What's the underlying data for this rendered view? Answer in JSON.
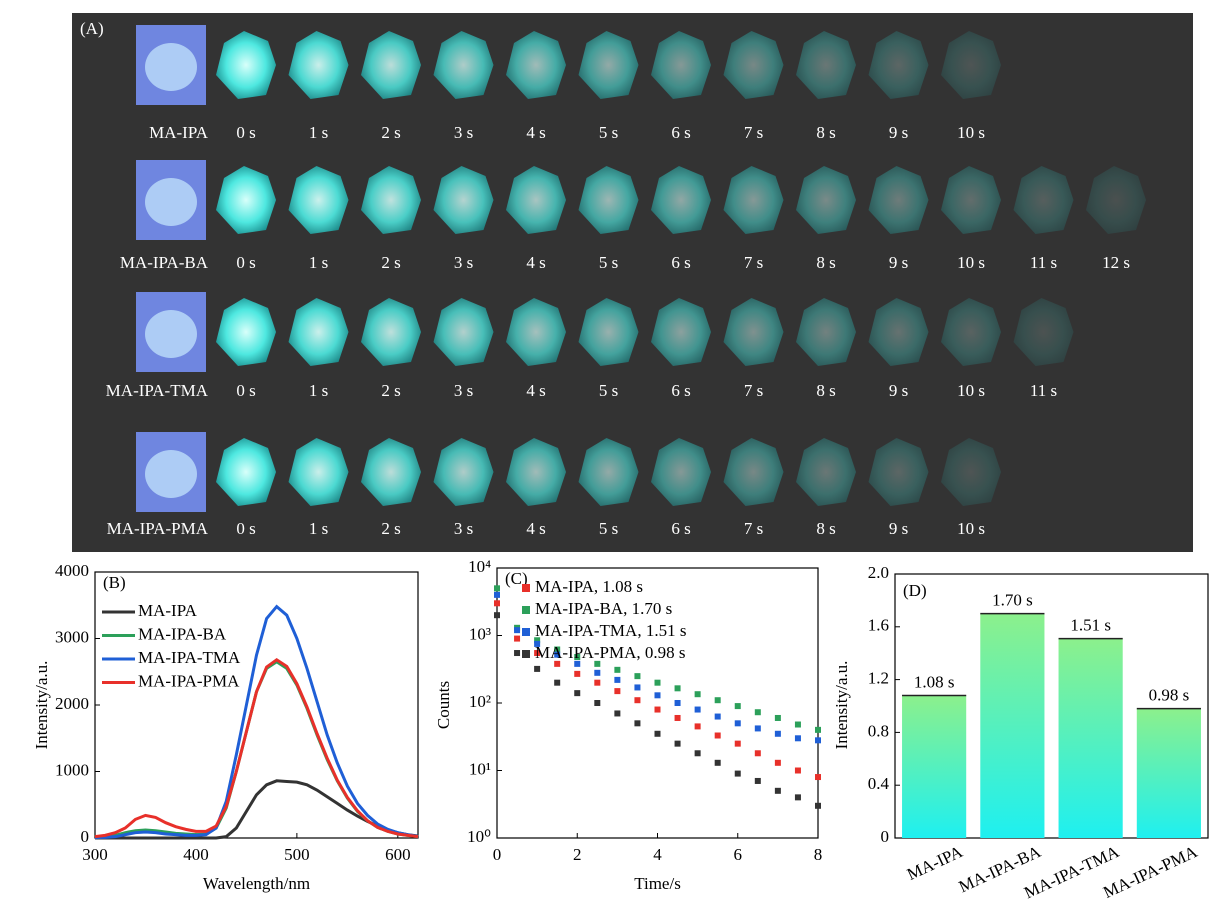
{
  "panel_a": {
    "label": "(A)",
    "rows": [
      {
        "name": "MA-IPA",
        "times": [
          "0 s",
          "1 s",
          "2 s",
          "3 s",
          "4 s",
          "5 s",
          "6 s",
          "7 s",
          "8 s",
          "9 s",
          "10 s"
        ]
      },
      {
        "name": "MA-IPA-BA",
        "times": [
          "0 s",
          "1 s",
          "2 s",
          "3 s",
          "4 s",
          "5 s",
          "6 s",
          "7 s",
          "8 s",
          "9 s",
          "10 s",
          "11 s",
          "12 s"
        ]
      },
      {
        "name": "MA-IPA-TMA",
        "times": [
          "0 s",
          "1 s",
          "2 s",
          "3 s",
          "4 s",
          "5 s",
          "6 s",
          "7 s",
          "8 s",
          "9 s",
          "10 s",
          "11 s"
        ]
      },
      {
        "name": "MA-IPA-PMA",
        "times": [
          "0 s",
          "1 s",
          "2 s",
          "3 s",
          "4 s",
          "5 s",
          "6 s",
          "7 s",
          "8 s",
          "9 s",
          "10 s"
        ]
      }
    ]
  },
  "chart_data": [
    {
      "type": "line",
      "panel_label": "(B)",
      "x_label": "Wavelength/nm",
      "y_label": "Intensity/a.u.",
      "x": [
        300,
        310,
        320,
        330,
        340,
        350,
        360,
        370,
        380,
        390,
        400,
        410,
        420,
        430,
        440,
        450,
        460,
        470,
        480,
        490,
        500,
        510,
        520,
        530,
        540,
        550,
        560,
        570,
        580,
        590,
        600,
        610,
        620
      ],
      "series": [
        {
          "name": "MA-IPA",
          "color": "#333333",
          "values": [
            0,
            0,
            0,
            0,
            0,
            0,
            0,
            0,
            0,
            0,
            0,
            0,
            0,
            20,
            150,
            400,
            650,
            800,
            860,
            850,
            840,
            800,
            720,
            620,
            520,
            420,
            330,
            250,
            180,
            120,
            80,
            50,
            30
          ]
        },
        {
          "name": "MA-IPA-BA",
          "color": "#2ca05a",
          "values": [
            10,
            20,
            40,
            80,
            110,
            120,
            110,
            90,
            70,
            60,
            50,
            60,
            150,
            450,
            1000,
            1600,
            2200,
            2550,
            2650,
            2550,
            2300,
            1950,
            1550,
            1180,
            860,
            600,
            400,
            260,
            160,
            100,
            60,
            40,
            20
          ]
        },
        {
          "name": "MA-IPA-TMA",
          "color": "#1f5fd6",
          "values": [
            5,
            10,
            20,
            50,
            80,
            90,
            80,
            60,
            50,
            40,
            40,
            50,
            150,
            550,
            1250,
            2000,
            2750,
            3300,
            3480,
            3350,
            3000,
            2550,
            2050,
            1550,
            1130,
            780,
            520,
            340,
            210,
            130,
            80,
            50,
            25
          ]
        },
        {
          "name": "MA-IPA-PMA",
          "color": "#e8302a",
          "values": [
            20,
            40,
            80,
            150,
            280,
            340,
            310,
            230,
            170,
            130,
            100,
            100,
            180,
            470,
            1000,
            1600,
            2200,
            2570,
            2680,
            2580,
            2320,
            1970,
            1570,
            1200,
            870,
            610,
            410,
            260,
            160,
            100,
            60,
            40,
            20
          ]
        }
      ],
      "xlim": [
        300,
        620
      ],
      "xticks": [
        300,
        400,
        500,
        600
      ],
      "ylim": [
        0,
        4000
      ],
      "yticks": [
        0,
        1000,
        2000,
        3000,
        4000
      ],
      "legend": "upper-left"
    },
    {
      "type": "scatter",
      "panel_label": "(C)",
      "x_label": "Time/s",
      "y_label": "Counts",
      "log_y": true,
      "x": [
        0,
        0.5,
        1,
        1.5,
        2,
        2.5,
        3,
        3.5,
        4,
        4.5,
        5,
        5.5,
        6,
        6.5,
        7,
        7.5,
        8
      ],
      "series": [
        {
          "name": "MA-IPA, 1.08 s",
          "color": "#e8302a",
          "values": [
            3000,
            900,
            550,
            380,
            270,
            200,
            150,
            110,
            80,
            60,
            45,
            33,
            25,
            18,
            13,
            10,
            8
          ]
        },
        {
          "name": "MA-IPA-BA, 1.70 s",
          "color": "#2ca05a",
          "values": [
            5000,
            1300,
            850,
            620,
            480,
            380,
            310,
            250,
            200,
            165,
            135,
            110,
            90,
            73,
            60,
            48,
            40
          ]
        },
        {
          "name": "MA-IPA-TMA, 1.51 s",
          "color": "#1f5fd6",
          "values": [
            4000,
            1200,
            750,
            520,
            380,
            280,
            220,
            170,
            130,
            100,
            80,
            63,
            50,
            42,
            35,
            30,
            28
          ]
        },
        {
          "name": "MA-IPA-PMA, 0.98 s",
          "color": "#333333",
          "values": [
            2000,
            550,
            320,
            200,
            140,
            100,
            70,
            50,
            35,
            25,
            18,
            13,
            9,
            7,
            5,
            4,
            3
          ]
        }
      ],
      "xlim": [
        0,
        8
      ],
      "xticks": [
        0,
        2,
        4,
        6,
        8
      ],
      "ylim": [
        1,
        10000
      ],
      "yticks": [
        {
          "value": 1,
          "label": "10⁰"
        },
        {
          "value": 10,
          "label": "10¹"
        },
        {
          "value": 100,
          "label": "10²"
        },
        {
          "value": 1000,
          "label": "10³"
        },
        {
          "value": 10000,
          "label": "10⁴"
        }
      ],
      "legend": "upper-right"
    },
    {
      "type": "bar",
      "panel_label": "(D)",
      "y_label": "Intensity/a.u.",
      "categories": [
        "MA-IPA",
        "MA-IPA-BA",
        "MA-IPA-TMA",
        "MA-IPA-PMA"
      ],
      "values": [
        1.08,
        1.7,
        1.51,
        0.98
      ],
      "value_labels": [
        "1.08 s",
        "1.70 s",
        "1.51 s",
        "0.98 s"
      ],
      "gradient": [
        "#8cf08c",
        "#1ef0f0"
      ],
      "ylim": [
        0,
        2
      ],
      "yticks": [
        0,
        0.4,
        0.8,
        1.2,
        1.6,
        {
          "value": 2,
          "label": "2.0"
        }
      ]
    }
  ]
}
